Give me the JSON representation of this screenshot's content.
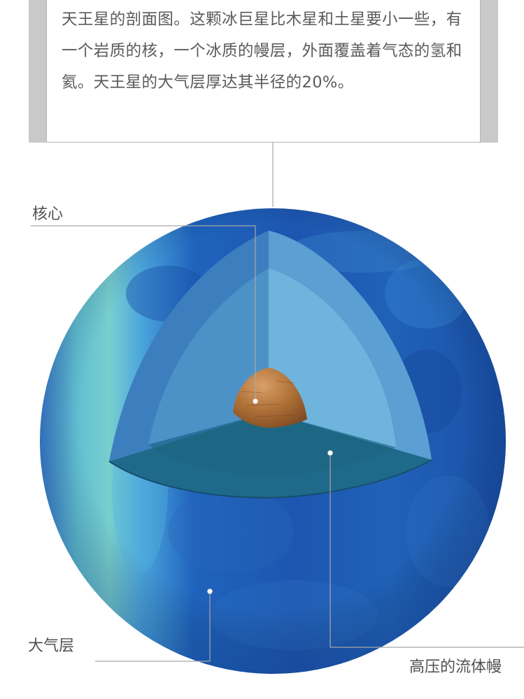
{
  "caption": {
    "text": "天王星的剖面图。这颗冰巨星比木星和土星要小一些，有一个岩质的核，一个冰质的幔层，外面覆盖着气态的氢和氦。天王星的大气层厚达其半径的20%。"
  },
  "labels": {
    "core": "核心",
    "atmosphere": "大气层",
    "mantle": "高压的流体幔"
  },
  "colors": {
    "planet_blue": "#1e57b0",
    "atmosphere_teal": "#6cc9cf",
    "mantle_light": "#6cb3db",
    "mantle_dark": "#206a8a",
    "core_brown": "#a56634",
    "leader_line": "#a8a8a8"
  }
}
